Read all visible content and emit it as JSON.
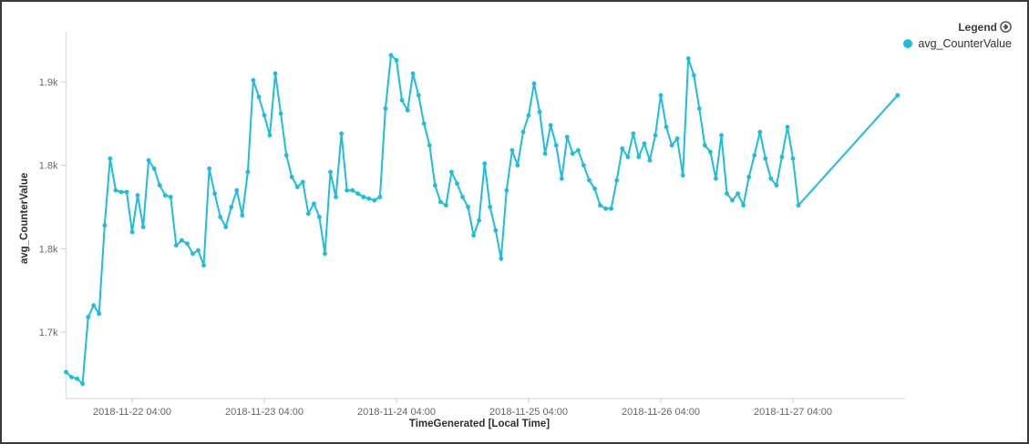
{
  "panel": {
    "background": "#ffffff",
    "border_color": "#3a3a3a"
  },
  "legend": {
    "title": "Legend",
    "expand_icon": "circled-right-arrow-icon",
    "items": [
      {
        "label": "avg_CounterValue",
        "color": "#1bbee0"
      }
    ]
  },
  "chart_data": {
    "type": "line",
    "title": "",
    "xlabel": "TimeGenerated [Local Time]",
    "ylabel": "avg_CounterValue",
    "grid": false,
    "legend_position": "top-right",
    "marker": "circle",
    "line_color": "#1bbee0",
    "x_axis": {
      "start_time": "2018-11-21 16:00",
      "unit": "hours_since_start",
      "ticks": [
        {
          "hour": 12,
          "label": "2018-11-22 04:00"
        },
        {
          "hour": 36,
          "label": "2018-11-23 04:00"
        },
        {
          "hour": 60,
          "label": "2018-11-24 04:00"
        },
        {
          "hour": 84,
          "label": "2018-11-25 04:00"
        },
        {
          "hour": 108,
          "label": "2018-11-26 04:00"
        },
        {
          "hour": 132,
          "label": "2018-11-27 04:00"
        }
      ]
    },
    "y_axis": {
      "range": [
        1660,
        1880
      ],
      "ticks": [
        {
          "value": 1850,
          "label": "1.9k"
        },
        {
          "value": 1800,
          "label": "1.8k"
        },
        {
          "value": 1750,
          "label": "1.8k"
        },
        {
          "value": 1700,
          "label": "1.7k"
        }
      ]
    },
    "series": [
      {
        "name": "avg_CounterValue",
        "color": "#1bbee0",
        "points": [
          [
            0,
            1676
          ],
          [
            1,
            1673
          ],
          [
            2,
            1672
          ],
          [
            3,
            1669
          ],
          [
            4,
            1709
          ],
          [
            5,
            1716
          ],
          [
            6,
            1711
          ],
          [
            7,
            1764
          ],
          [
            8,
            1804
          ],
          [
            9,
            1785
          ],
          [
            10,
            1784
          ],
          [
            11,
            1784
          ],
          [
            12,
            1760
          ],
          [
            13,
            1782
          ],
          [
            14,
            1763
          ],
          [
            15,
            1803
          ],
          [
            16,
            1798
          ],
          [
            17,
            1788
          ],
          [
            18,
            1782
          ],
          [
            19,
            1781
          ],
          [
            20,
            1752
          ],
          [
            21,
            1755
          ],
          [
            22,
            1753
          ],
          [
            23,
            1747
          ],
          [
            24,
            1749
          ],
          [
            25,
            1740
          ],
          [
            26,
            1798
          ],
          [
            27,
            1783
          ],
          [
            28,
            1769
          ],
          [
            29,
            1763
          ],
          [
            30,
            1775
          ],
          [
            31,
            1785
          ],
          [
            32,
            1770
          ],
          [
            33,
            1796
          ],
          [
            34,
            1851
          ],
          [
            35,
            1841
          ],
          [
            36,
            1830
          ],
          [
            37,
            1818
          ],
          [
            38,
            1855
          ],
          [
            39,
            1831
          ],
          [
            40,
            1806
          ],
          [
            41,
            1793
          ],
          [
            42,
            1787
          ],
          [
            43,
            1790
          ],
          [
            44,
            1771
          ],
          [
            45,
            1777
          ],
          [
            46,
            1769
          ],
          [
            47,
            1747
          ],
          [
            48,
            1796
          ],
          [
            49,
            1781
          ],
          [
            50,
            1819
          ],
          [
            51,
            1785
          ],
          [
            52,
            1785
          ],
          [
            53,
            1783
          ],
          [
            54,
            1781
          ],
          [
            55,
            1780
          ],
          [
            56,
            1779
          ],
          [
            57,
            1781
          ],
          [
            58,
            1834
          ],
          [
            59,
            1866
          ],
          [
            60,
            1863
          ],
          [
            61,
            1839
          ],
          [
            62,
            1833
          ],
          [
            63,
            1855
          ],
          [
            64,
            1842
          ],
          [
            65,
            1825
          ],
          [
            66,
            1812
          ],
          [
            67,
            1788
          ],
          [
            68,
            1778
          ],
          [
            69,
            1776
          ],
          [
            70,
            1796
          ],
          [
            71,
            1789
          ],
          [
            72,
            1781
          ],
          [
            73,
            1775
          ],
          [
            74,
            1758
          ],
          [
            75,
            1767
          ],
          [
            76,
            1801
          ],
          [
            77,
            1775
          ],
          [
            78,
            1761
          ],
          [
            79,
            1744
          ],
          [
            80,
            1785
          ],
          [
            81,
            1809
          ],
          [
            82,
            1800
          ],
          [
            83,
            1820
          ],
          [
            84,
            1830
          ],
          [
            85,
            1849
          ],
          [
            86,
            1832
          ],
          [
            87,
            1807
          ],
          [
            88,
            1824
          ],
          [
            89,
            1812
          ],
          [
            90,
            1792
          ],
          [
            91,
            1817
          ],
          [
            92,
            1807
          ],
          [
            93,
            1809
          ],
          [
            94,
            1800
          ],
          [
            95,
            1791
          ],
          [
            96,
            1786
          ],
          [
            97,
            1776
          ],
          [
            98,
            1774
          ],
          [
            99,
            1774
          ],
          [
            100,
            1791
          ],
          [
            101,
            1810
          ],
          [
            102,
            1805
          ],
          [
            103,
            1819
          ],
          [
            104,
            1805
          ],
          [
            105,
            1813
          ],
          [
            106,
            1803
          ],
          [
            107,
            1818
          ],
          [
            108,
            1842
          ],
          [
            109,
            1823
          ],
          [
            110,
            1812
          ],
          [
            111,
            1816
          ],
          [
            112,
            1794
          ],
          [
            113,
            1864
          ],
          [
            114,
            1854
          ],
          [
            115,
            1834
          ],
          [
            116,
            1812
          ],
          [
            117,
            1808
          ],
          [
            118,
            1792
          ],
          [
            119,
            1818
          ],
          [
            120,
            1783
          ],
          [
            121,
            1779
          ],
          [
            122,
            1783
          ],
          [
            123,
            1776
          ],
          [
            124,
            1793
          ],
          [
            125,
            1806
          ],
          [
            126,
            1820
          ],
          [
            127,
            1804
          ],
          [
            128,
            1792
          ],
          [
            129,
            1788
          ],
          [
            130,
            1805
          ],
          [
            131,
            1823
          ],
          [
            132,
            1804
          ],
          [
            133,
            1776
          ],
          [
            151,
            1842
          ]
        ]
      }
    ]
  }
}
